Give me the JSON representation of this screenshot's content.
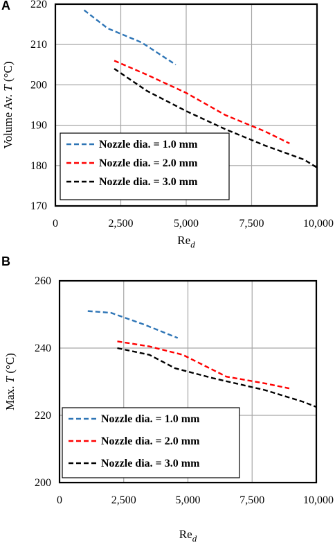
{
  "colors": {
    "series_blue": "#2e75b6",
    "series_red": "#ff0000",
    "series_black": "#000000",
    "grid": "#a6a6a6",
    "frame": "#000000"
  },
  "chart_data": [
    {
      "type": "line",
      "panel": "A",
      "ylabel": "Volume Av. T (°C)",
      "ylabel_main": "Volume Av. ",
      "ylabel_italic": "T",
      "ylabel_unit": " (°C)",
      "xlabel": "Red",
      "xlabel_main": "Re",
      "xlabel_sub": "d",
      "xlim": [
        0,
        10000
      ],
      "ylim": [
        170,
        220
      ],
      "xticks": [
        0,
        2500,
        5000,
        7500,
        10000
      ],
      "xtick_labels": [
        "0",
        "2,500",
        "5,000",
        "7,500",
        "10,000"
      ],
      "yticks": [
        170,
        180,
        190,
        200,
        210,
        220
      ],
      "ytick_labels": [
        "170",
        "180",
        "190",
        "200",
        "210",
        "220"
      ],
      "grid": true,
      "legend_position": "bottom-left",
      "series": [
        {
          "name": "Nozzle dia. = 1.0 mm",
          "color": "#2e75b6",
          "x": [
            1100,
            2000,
            3300,
            4600
          ],
          "y": [
            218.5,
            214,
            210.5,
            205
          ]
        },
        {
          "name": "Nozzle dia. = 2.0 mm",
          "color": "#ff0000",
          "x": [
            2250,
            3500,
            5000,
            6500,
            8000,
            8950
          ],
          "y": [
            206,
            202.5,
            198,
            192.5,
            188.5,
            185.5
          ]
        },
        {
          "name": "Nozzle dia. = 3.0 mm",
          "color": "#000000",
          "x": [
            2250,
            3500,
            5000,
            6500,
            8000,
            9500,
            10000
          ],
          "y": [
            204,
            198.5,
            193.5,
            189,
            185,
            181.5,
            179.5
          ]
        }
      ]
    },
    {
      "type": "line",
      "panel": "B",
      "ylabel": "Max. T (°C)",
      "ylabel_main": "Max. ",
      "ylabel_italic": "T",
      "ylabel_unit": " (°C)",
      "xlabel": "Red",
      "xlabel_main": "Re",
      "xlabel_sub": "d",
      "xlim": [
        0,
        10000
      ],
      "ylim": [
        200,
        260
      ],
      "xticks": [
        0,
        2500,
        5000,
        7500,
        10000
      ],
      "xtick_labels": [
        "0",
        "2,500",
        "5,000",
        "7,500",
        "10,000"
      ],
      "yticks": [
        200,
        220,
        240,
        260
      ],
      "ytick_labels": [
        "200",
        "220",
        "240",
        "260"
      ],
      "grid": true,
      "legend_position": "bottom-left",
      "series": [
        {
          "name": "Nozzle dia. = 1.0 mm",
          "color": "#2e75b6",
          "x": [
            1100,
            2000,
            3300,
            4600
          ],
          "y": [
            251,
            250.5,
            247,
            243
          ]
        },
        {
          "name": "Nozzle dia. = 2.0 mm",
          "color": "#ff0000",
          "x": [
            2250,
            3500,
            4800,
            6500,
            8000,
            8950
          ],
          "y": [
            242,
            240.5,
            238,
            231.5,
            229.5,
            228
          ]
        },
        {
          "name": "Nozzle dia. = 3.0 mm",
          "color": "#000000",
          "x": [
            2250,
            3500,
            4500,
            6000,
            8000,
            9500,
            10000
          ],
          "y": [
            240,
            238,
            234,
            231,
            227.5,
            224,
            222.5
          ]
        }
      ]
    }
  ]
}
